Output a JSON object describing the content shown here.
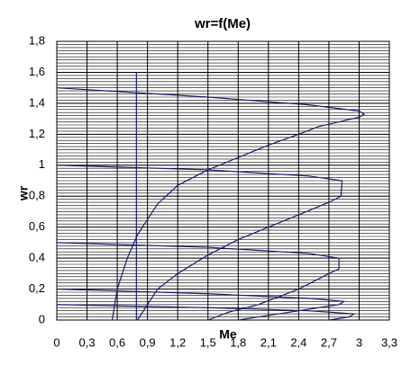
{
  "chart_data": {
    "type": "line",
    "title": "wr=f(Me)",
    "x_label": "Me",
    "y_label": "wr",
    "xlim": [
      0,
      3.3
    ],
    "xticks": [
      0,
      {
        "value": 0.3,
        "label": "0,3"
      },
      {
        "value": 0.6,
        "label": "0,6"
      },
      {
        "value": 0.9,
        "label": "0,9"
      },
      {
        "value": 1.2,
        "label": "1,2"
      },
      {
        "value": 1.5,
        "label": "1,5"
      },
      {
        "value": 1.8,
        "label": "1,8"
      },
      {
        "value": 2.1,
        "label": "2,1"
      },
      {
        "value": 2.4,
        "label": "2,4"
      },
      {
        "value": 2.7,
        "label": "2,7"
      },
      3,
      {
        "value": 3.3,
        "label": "3,3"
      }
    ],
    "ylim": [
      0,
      1.8
    ],
    "yticks": [
      0,
      {
        "value": 0.2,
        "label": "0,2"
      },
      {
        "value": 0.4,
        "label": "0,4"
      },
      {
        "value": 0.6,
        "label": "0,6"
      },
      {
        "value": 0.8,
        "label": "0,8"
      },
      1,
      {
        "value": 1.2,
        "label": "1,2"
      },
      {
        "value": 1.4,
        "label": "1,4"
      },
      {
        "value": 1.6,
        "label": "1,6"
      },
      {
        "value": 1.8,
        "label": "1,8"
      }
    ],
    "grid": true,
    "yminor_step": 0.02,
    "series": [
      {
        "color": "#1a1a6e",
        "x": [
          0.79,
          0.79
        ],
        "values": [
          0,
          1.6
        ]
      },
      {
        "color": "#1a1a6e",
        "x": [
          0.55,
          0.6,
          0.7,
          0.8,
          1.0,
          1.2,
          1.5,
          1.8,
          2.1,
          2.4,
          2.6,
          2.8,
          3.0,
          3.05,
          3.0,
          2.5,
          1.5,
          0.5,
          0
        ],
        "values": [
          0,
          0.2,
          0.4,
          0.55,
          0.75,
          0.87,
          0.97,
          1.05,
          1.13,
          1.2,
          1.25,
          1.28,
          1.31,
          1.33,
          1.35,
          1.39,
          1.44,
          1.48,
          1.5
        ]
      },
      {
        "color": "#1a1a6e",
        "x": [
          0.8,
          0.9,
          1.0,
          1.2,
          1.5,
          1.8,
          2.1,
          2.4,
          2.7,
          2.82,
          2.83,
          2.5,
          1.5,
          0
        ],
        "values": [
          0,
          0.1,
          0.2,
          0.3,
          0.42,
          0.52,
          0.6,
          0.68,
          0.76,
          0.8,
          0.9,
          0.93,
          0.97,
          1.0
        ]
      },
      {
        "color": "#1a1a6e",
        "x": [
          1.5,
          1.7,
          2.0,
          2.4,
          2.7,
          2.8,
          2.8,
          2.5,
          1.5,
          0
        ],
        "values": [
          0,
          0.05,
          0.1,
          0.2,
          0.3,
          0.33,
          0.4,
          0.43,
          0.47,
          0.5
        ]
      },
      {
        "color": "#1a1a6e",
        "x": [
          0,
          1.5,
          2.5,
          2.85,
          2.8,
          2.4,
          2.0,
          1.8
        ],
        "values": [
          0.2,
          0.17,
          0.14,
          0.12,
          0.1,
          0.06,
          0.02,
          0
        ]
      },
      {
        "color": "#1a1a6e",
        "x": [
          0,
          1.5,
          2.5,
          2.95,
          2.9,
          2.7
        ],
        "values": [
          0.1,
          0.08,
          0.06,
          0.04,
          0.02,
          0
        ]
      }
    ]
  }
}
